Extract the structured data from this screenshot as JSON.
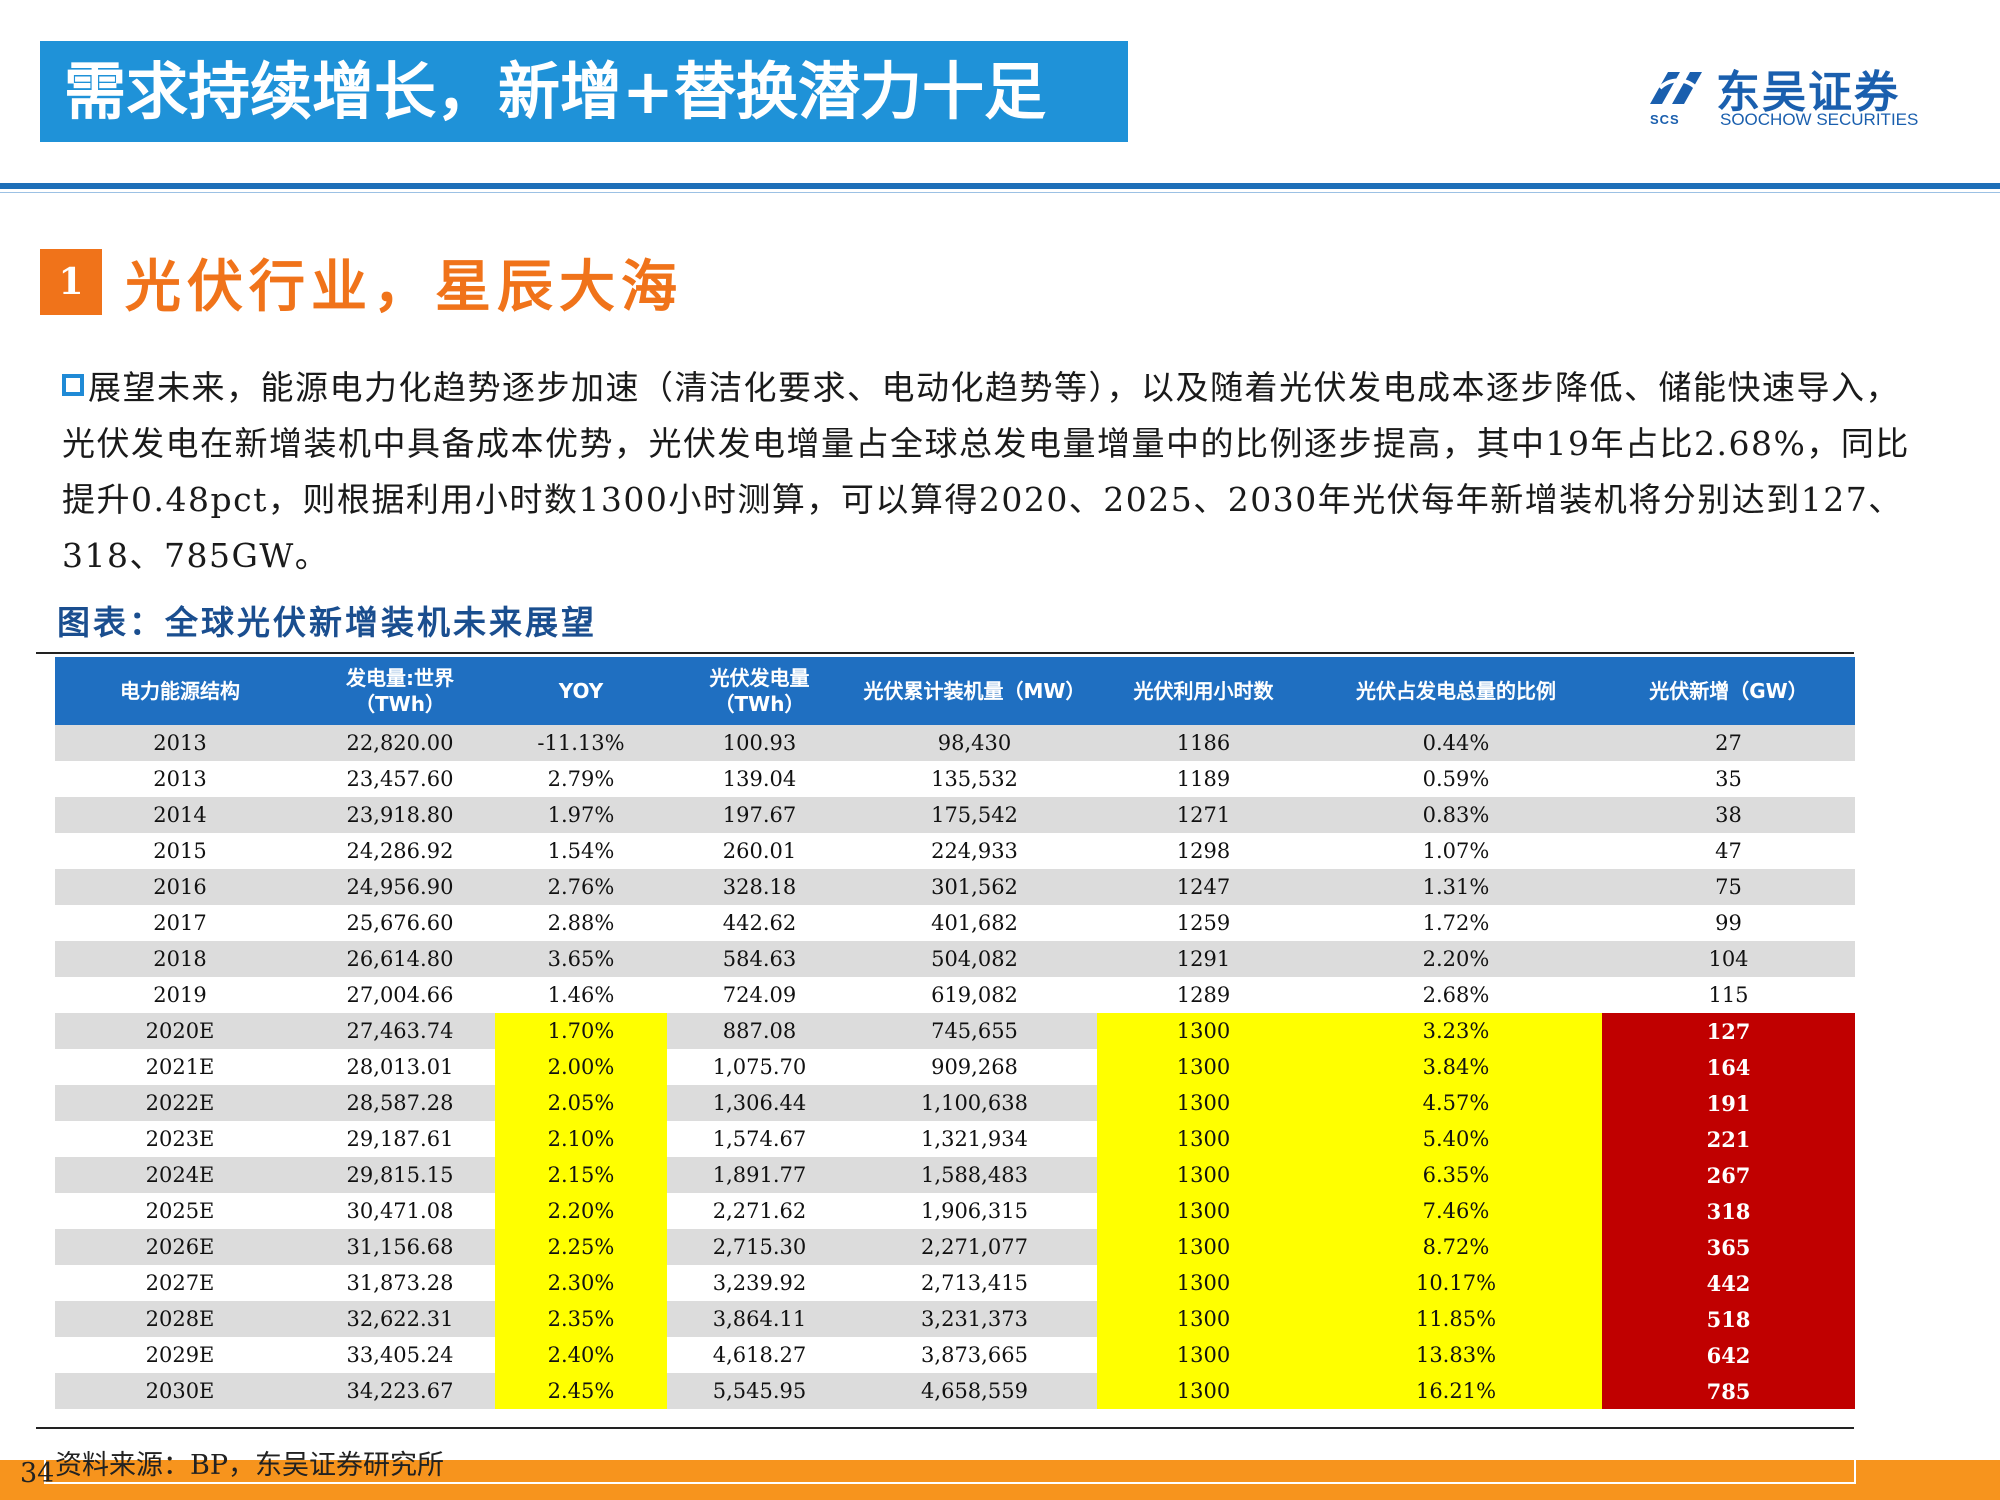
{
  "header": {
    "title": "需求持续增长，新增+替换潜力十足",
    "logo_cn": "东吴证券",
    "logo_en": "SOOCHOW SECURITIES",
    "logo_abbr": "SCS"
  },
  "section": {
    "number": "1",
    "title": "光伏行业，星辰大海"
  },
  "paragraph": "展望未来，能源电力化趋势逐步加速（清洁化要求、电动化趋势等），以及随着光伏发电成本逐步降低、储能快速导入，光伏发电在新增装机中具备成本优势，光伏发电增量占全球总发电量增量中的比例逐步提高，其中19年占比2.68%，同比提升0.48pct，则根据利用小时数1300小时测算，可以算得2020、2025、2030年光伏每年新增装机将分别达到127、318、785GW。",
  "chart_title": "图表：全球光伏新增装机未来展望",
  "table": {
    "headers": [
      "电力能源结构",
      "发电量:世界\n（TWh）",
      "YOY",
      "光伏发电量\n（TWh）",
      "光伏累计装机量（MW）",
      "光伏利用小时数",
      "光伏占发电总量的比例",
      "光伏新增（GW）"
    ],
    "rows": [
      [
        "2013",
        "22,820.00",
        "-11.13%",
        "100.93",
        "98,430",
        "1186",
        "0.44%",
        "27"
      ],
      [
        "2013",
        "23,457.60",
        "2.79%",
        "139.04",
        "135,532",
        "1189",
        "0.59%",
        "35"
      ],
      [
        "2014",
        "23,918.80",
        "1.97%",
        "197.67",
        "175,542",
        "1271",
        "0.83%",
        "38"
      ],
      [
        "2015",
        "24,286.92",
        "1.54%",
        "260.01",
        "224,933",
        "1298",
        "1.07%",
        "47"
      ],
      [
        "2016",
        "24,956.90",
        "2.76%",
        "328.18",
        "301,562",
        "1247",
        "1.31%",
        "75"
      ],
      [
        "2017",
        "25,676.60",
        "2.88%",
        "442.62",
        "401,682",
        "1259",
        "1.72%",
        "99"
      ],
      [
        "2018",
        "26,614.80",
        "3.65%",
        "584.63",
        "504,082",
        "1291",
        "2.20%",
        "104"
      ],
      [
        "2019",
        "27,004.66",
        "1.46%",
        "724.09",
        "619,082",
        "1289",
        "2.68%",
        "115"
      ],
      [
        "2020E",
        "27,463.74",
        "1.70%",
        "887.08",
        "745,655",
        "1300",
        "3.23%",
        "127"
      ],
      [
        "2021E",
        "28,013.01",
        "2.00%",
        "1,075.70",
        "909,268",
        "1300",
        "3.84%",
        "164"
      ],
      [
        "2022E",
        "28,587.28",
        "2.05%",
        "1,306.44",
        "1,100,638",
        "1300",
        "4.57%",
        "191"
      ],
      [
        "2023E",
        "29,187.61",
        "2.10%",
        "1,574.67",
        "1,321,934",
        "1300",
        "5.40%",
        "221"
      ],
      [
        "2024E",
        "29,815.15",
        "2.15%",
        "1,891.77",
        "1,588,483",
        "1300",
        "6.35%",
        "267"
      ],
      [
        "2025E",
        "30,471.08",
        "2.20%",
        "2,271.62",
        "1,906,315",
        "1300",
        "7.46%",
        "318"
      ],
      [
        "2026E",
        "31,156.68",
        "2.25%",
        "2,715.30",
        "2,271,077",
        "1300",
        "8.72%",
        "365"
      ],
      [
        "2027E",
        "31,873.28",
        "2.30%",
        "3,239.92",
        "2,713,415",
        "1300",
        "10.17%",
        "442"
      ],
      [
        "2028E",
        "32,622.31",
        "2.35%",
        "3,864.11",
        "3,231,373",
        "1300",
        "11.85%",
        "518"
      ],
      [
        "2029E",
        "33,405.24",
        "2.40%",
        "4,618.27",
        "3,873,665",
        "1300",
        "13.83%",
        "642"
      ],
      [
        "2030E",
        "34,223.67",
        "2.45%",
        "5,545.95",
        "4,658,559",
        "1300",
        "16.21%",
        "785"
      ]
    ],
    "highlight_colors": {
      "header_bg": "#1f6fc1",
      "yellow": "#ffff00",
      "red": "#c00000"
    }
  },
  "source": "资料来源：BP，东吴证券研究所",
  "page_number": "34"
}
